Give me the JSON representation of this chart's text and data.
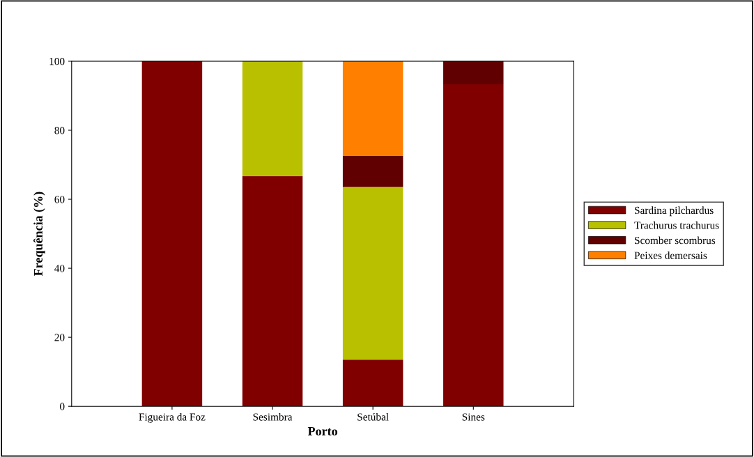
{
  "chart_data": {
    "type": "bar",
    "stacked": true,
    "xlabel": "Porto",
    "ylabel": "Frequência (%)",
    "categories": [
      "Figueira da Foz",
      "Sesimbra",
      "Setúbal",
      "Sines"
    ],
    "series": [
      {
        "name": "Sardina pilchardus",
        "color": "#800000",
        "values": [
          100,
          66.7,
          13.5,
          93.3
        ]
      },
      {
        "name": "Trachurus trachurus",
        "color": "#b8c000",
        "values": [
          0,
          33.3,
          50.1,
          0
        ]
      },
      {
        "name": "Scomber scombrus",
        "color": "#600000",
        "values": [
          0,
          0,
          8.9,
          6.7
        ]
      },
      {
        "name": "Peixes demersais",
        "color": "#ff8000",
        "values": [
          0,
          0,
          27.5,
          0
        ]
      }
    ],
    "ylim": [
      0,
      100
    ],
    "yticks": [
      0,
      20,
      40,
      60,
      80,
      100
    ],
    "grid": false,
    "legend": "right"
  }
}
